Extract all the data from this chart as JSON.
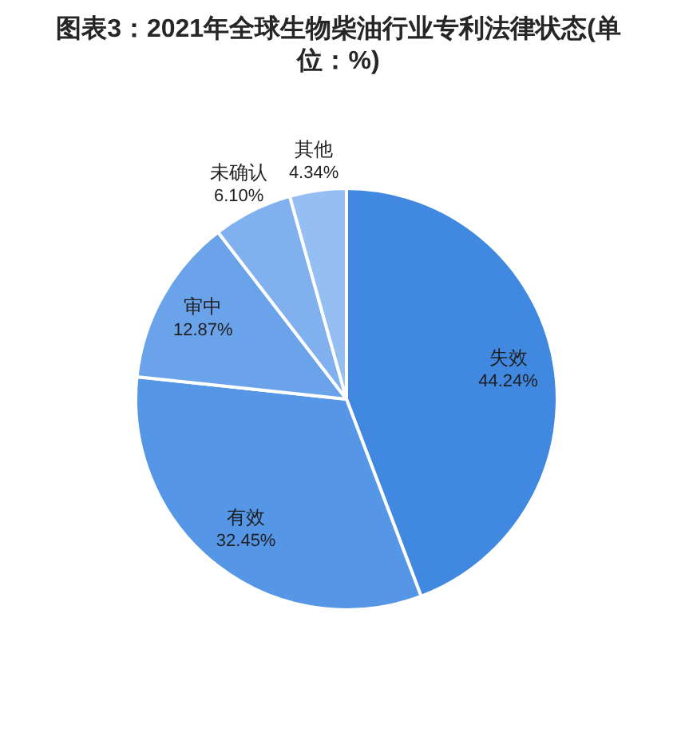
{
  "chart_data": {
    "type": "pie",
    "title": "图表3：2021年全球生物柴油行业专利法律状态(单位：%)",
    "categories": [
      "失效",
      "有效",
      "审中",
      "未确认",
      "其他"
    ],
    "values": [
      44.24,
      32.45,
      12.87,
      6.1,
      4.34
    ],
    "colors": [
      "#4189e0",
      "#5596e6",
      "#6aa3ea",
      "#80b1ee",
      "#95bef2"
    ],
    "value_labels": [
      "44.24%",
      "32.45%",
      "12.87%",
      "6.10%",
      "4.34%"
    ]
  }
}
